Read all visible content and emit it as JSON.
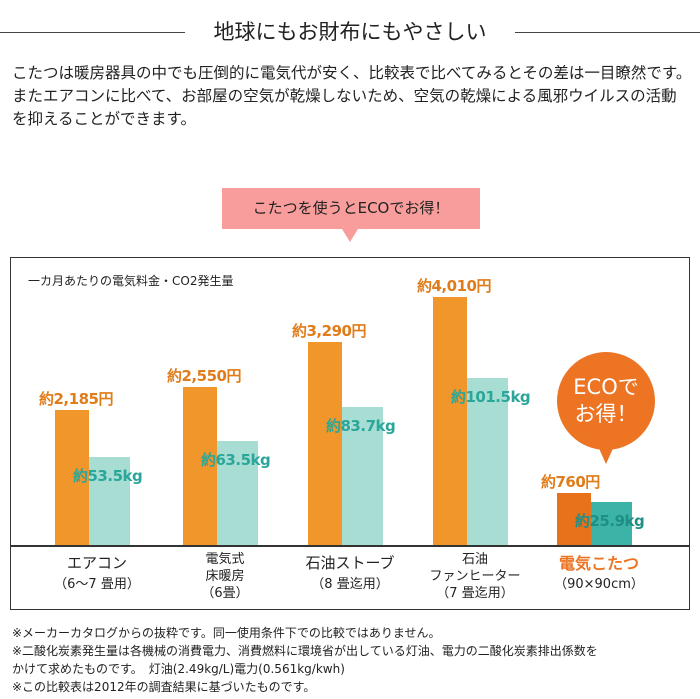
{
  "header": {
    "title": "地球にもお財布にもやさしい"
  },
  "intro": [
    "こたつは暖房器具の中でも圧倒的に電気代が安く、比較表で比べてみるとその差は一目瞭然です。",
    "またエアコンに比べて、お部屋の空気が乾燥しないため、空気の乾燥による風邪ウイルスの活動を抑えることができます。"
  ],
  "callout": "こたつを使うとECOでお得！",
  "bubble": {
    "line1": "ECOで",
    "line2": "お得！"
  },
  "colors": {
    "cost": "#f0962a",
    "co2": "#a8ddd3",
    "highlight_cost": "#e8711b",
    "highlight_co2": "#3bb3a6",
    "highlight_text": "#ec7423"
  },
  "chart_data": {
    "type": "bar",
    "title": "一カ月あたりの電気料金・CO2発生量",
    "categories": [
      {
        "lines": [
          "エアコン",
          "（6〜7 畳用）"
        ]
      },
      {
        "lines": [
          "電気式",
          "床暖房",
          "（6畳）"
        ]
      },
      {
        "lines": [
          "石油ストーブ",
          "（8 畳迄用）"
        ]
      },
      {
        "lines": [
          "石油",
          "ファンヒーター",
          "（7 畳迄用）"
        ]
      },
      {
        "lines": [
          "電気こたつ",
          "（90×90cm）"
        ]
      }
    ],
    "series": [
      {
        "unit": "円",
        "values": [
          2185,
          2550,
          3290,
          4010,
          760
        ],
        "labels": [
          "約2,185円",
          "約2,550円",
          "約3,290円",
          "約4,010円",
          "約760円"
        ]
      },
      {
        "unit": "kg",
        "values": [
          53.5,
          63.5,
          83.7,
          101.5,
          25.9
        ],
        "labels": [
          "約53.5kg",
          "約63.5kg",
          "約83.7kg",
          "約101.5kg",
          "約25.9kg"
        ]
      }
    ],
    "highlight_index": 4
  },
  "notes": [
    "※メーカーカタログからの抜粋です。同一使用条件下での比較ではありません。",
    "※二酸化炭素発生量は各機械の消費電力、消費燃料に環境省が出している灯油、電力の二酸化炭素排出係数を",
    "かけて求めたものです。　灯油(2.49kg/L)電力(0.561kg/kwh)",
    "※この比較表は2012年の調査結果に基づいたものです。"
  ]
}
